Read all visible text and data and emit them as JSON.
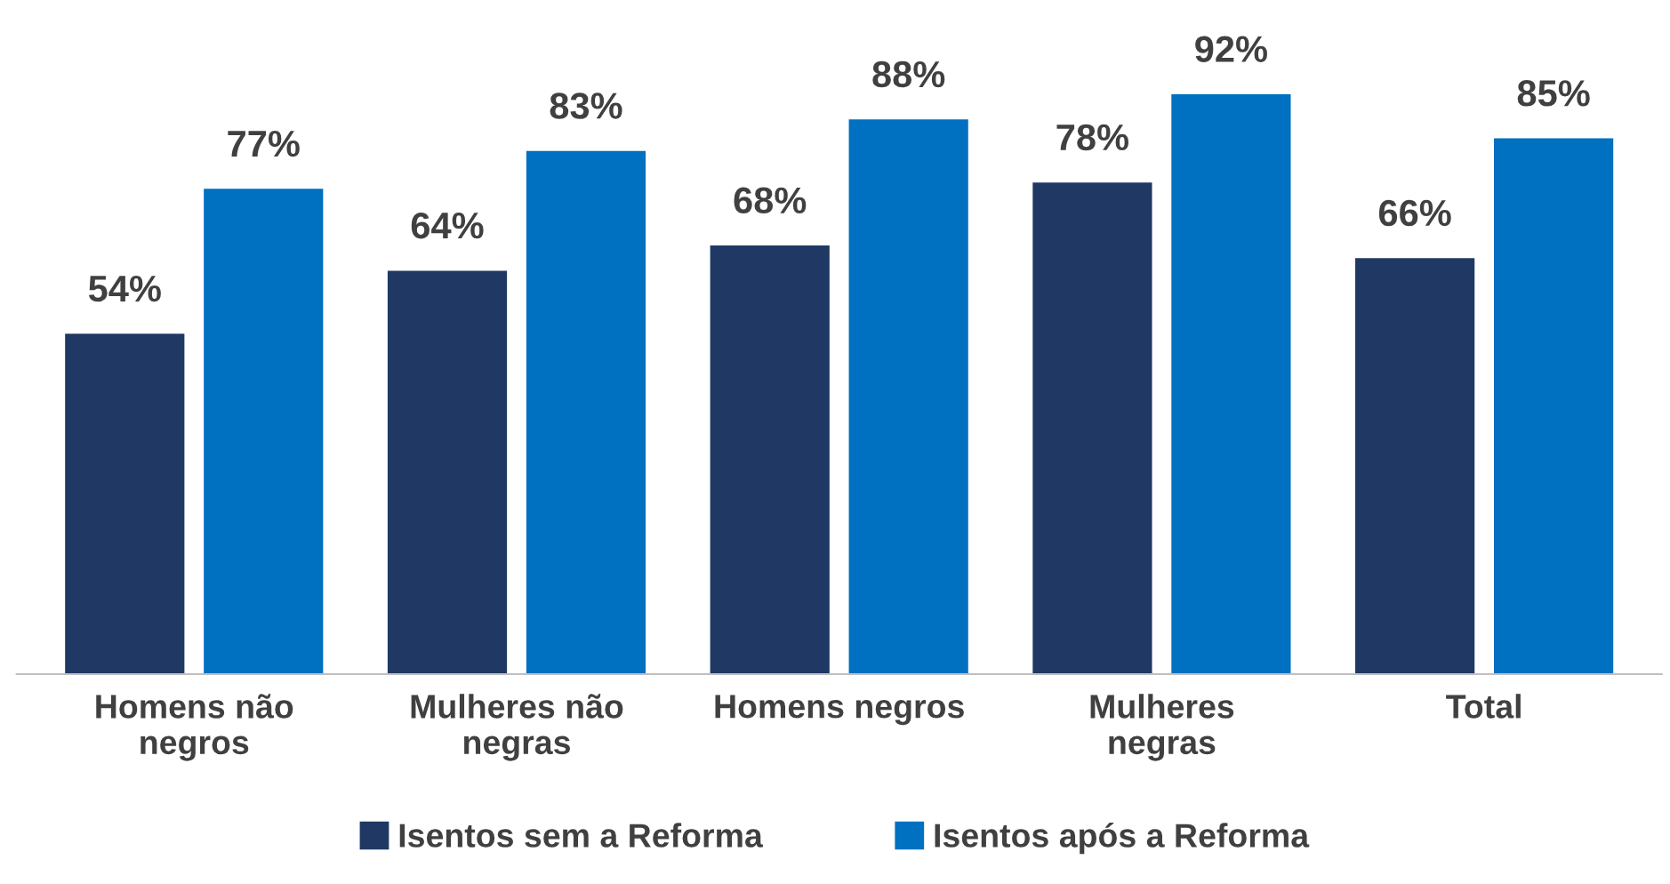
{
  "chart_data": {
    "type": "bar",
    "categories": [
      "Homens não\nnegros",
      "Mulheres não\nnegras",
      "Homens negros",
      "Mulheres\nnegras",
      "Total"
    ],
    "series": [
      {
        "name": "Isentos sem a Reforma",
        "color": "#1f3864",
        "values": [
          54,
          64,
          68,
          78,
          66
        ],
        "value_labels": [
          "54%",
          "64%",
          "68%",
          "78%",
          "66%"
        ]
      },
      {
        "name": "Isentos após a Reforma",
        "color": "#0070c0",
        "values": [
          77,
          83,
          88,
          92,
          85
        ],
        "value_labels": [
          "77%",
          "83%",
          "88%",
          "92%",
          "85%"
        ]
      }
    ],
    "tick_labels": "x",
    "grid": false,
    "legend": "bottom"
  }
}
